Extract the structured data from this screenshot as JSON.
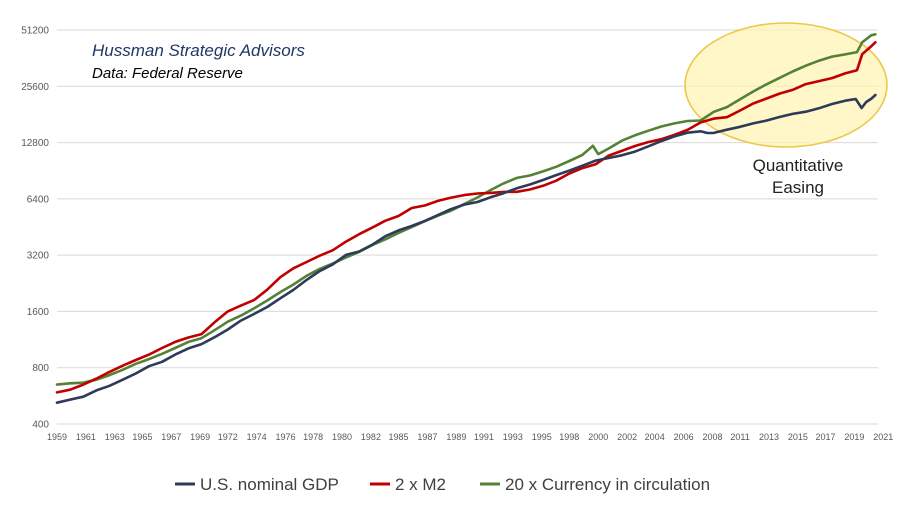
{
  "chart_data": {
    "type": "line",
    "y_scale": "log2",
    "ylim": [
      400,
      51200
    ],
    "y_ticks": [
      "400",
      "800",
      "1600",
      "3200",
      "6400",
      "12800",
      "25600",
      "51200"
    ],
    "y_tick_values": [
      400,
      800,
      1600,
      3200,
      6400,
      12800,
      25600,
      51200
    ],
    "xlim": [
      1959,
      2021.5
    ],
    "x_ticks": [
      "1959",
      "1961",
      "1963",
      "1965",
      "1967",
      "1969",
      "1972",
      "1974",
      "1976",
      "1978",
      "1980",
      "1982",
      "1985",
      "1987",
      "1989",
      "1991",
      "1993",
      "1995",
      "1998",
      "2000",
      "2002",
      "2004",
      "2006",
      "2008",
      "2011",
      "2013",
      "2015",
      "2017",
      "2019",
      "2021"
    ],
    "x_tick_values": [
      1959,
      1961.2,
      1963.4,
      1965.5,
      1967.7,
      1969.9,
      1972,
      1974.2,
      1976.4,
      1978.5,
      1980.7,
      1982.9,
      1985,
      1987.2,
      1989.4,
      1991.5,
      1993.7,
      1995.9,
      1998,
      2000.2,
      2002.4,
      2004.5,
      2006.7,
      2008.9,
      2011,
      2013.2,
      2015.4,
      2017.5,
      2019.7,
      2021.9
    ],
    "grid": true,
    "legend_position": "bottom",
    "annotations": {
      "source_title": "Hussman Strategic Advisors",
      "source_note": "Data: Federal Reserve",
      "callout_line1": "Quantitative",
      "callout_line2": "Easing"
    },
    "series": [
      {
        "name": "U.S. nominal GDP",
        "color": "#2e3a59",
        "x": [
          1959,
          1960,
          1961,
          1962,
          1963,
          1964,
          1965,
          1966,
          1967,
          1968,
          1969,
          1970,
          1971,
          1972,
          1973,
          1974,
          1975,
          1976,
          1977,
          1978,
          1979,
          1980,
          1981,
          1982,
          1983,
          1984,
          1985,
          1986,
          1987,
          1988,
          1989,
          1990,
          1991,
          1992,
          1993,
          1994,
          1995,
          1996,
          1997,
          1998,
          1999,
          2000,
          2001,
          2002,
          2003,
          2004,
          2005,
          2006,
          2007,
          2008,
          2008.5,
          2009,
          2010,
          2011,
          2012,
          2013,
          2014,
          2015,
          2016,
          2017,
          2018,
          2019,
          2019.8,
          2020.25,
          2020.6,
          2021,
          2021.3
        ],
        "values": [
          520,
          540,
          560,
          605,
          640,
          690,
          745,
          815,
          860,
          940,
          1015,
          1070,
          1165,
          1280,
          1430,
          1550,
          1690,
          1880,
          2085,
          2360,
          2630,
          2860,
          3210,
          3345,
          3640,
          4040,
          4340,
          4580,
          4880,
          5240,
          5640,
          5960,
          6160,
          6520,
          6860,
          7290,
          7640,
          8070,
          8580,
          9060,
          9630,
          10250,
          10580,
          10940,
          11460,
          12210,
          13040,
          13810,
          14450,
          14710,
          14400,
          14420,
          15000,
          15540,
          16200,
          16780,
          17530,
          18220,
          18710,
          19520,
          20580,
          21430,
          21900,
          19600,
          21100,
          22000,
          23000
        ]
      },
      {
        "name": "2 x M2",
        "color": "#c00000",
        "x": [
          1959,
          1960,
          1961,
          1962,
          1963,
          1964,
          1965,
          1966,
          1967,
          1968,
          1969,
          1970,
          1971,
          1972,
          1973,
          1974,
          1975,
          1976,
          1977,
          1978,
          1979,
          1980,
          1981,
          1982,
          1983,
          1984,
          1985,
          1986,
          1987,
          1988,
          1989,
          1990,
          1991,
          1992,
          1993,
          1994,
          1995,
          1996,
          1997,
          1998,
          1999,
          2000,
          2001,
          2002,
          2003,
          2004,
          2005,
          2006,
          2007,
          2008,
          2009,
          2010,
          2011,
          2012,
          2013,
          2014,
          2015,
          2016,
          2017,
          2018,
          2019,
          2019.9,
          2020.3,
          2021,
          2021.3
        ],
        "values": [
          590,
          610,
          650,
          700,
          760,
          820,
          880,
          940,
          1020,
          1100,
          1160,
          1210,
          1400,
          1600,
          1720,
          1840,
          2090,
          2440,
          2720,
          2940,
          3180,
          3400,
          3780,
          4140,
          4490,
          4890,
          5180,
          5720,
          5900,
          6240,
          6500,
          6700,
          6840,
          6890,
          6970,
          6980,
          7180,
          7520,
          8000,
          8750,
          9350,
          9800,
          10900,
          11550,
          12270,
          12880,
          13340,
          14080,
          14960,
          16400,
          17200,
          17500,
          19000,
          20700,
          22000,
          23400,
          24500,
          26300,
          27300,
          28300,
          30000,
          31200,
          38000,
          42000,
          44000
        ]
      },
      {
        "name": "20 x Currency in circulation",
        "color": "#548235",
        "x": [
          1959,
          1960,
          1961,
          1962,
          1963,
          1964,
          1965,
          1966,
          1967,
          1968,
          1969,
          1970,
          1971,
          1972,
          1973,
          1974,
          1975,
          1976,
          1977,
          1978,
          1979,
          1980,
          1981,
          1982,
          1983,
          1984,
          1985,
          1986,
          1987,
          1988,
          1989,
          1990,
          1991,
          1992,
          1993,
          1994,
          1995,
          1996,
          1997,
          1998,
          1999,
          1999.8,
          2000.2,
          2001,
          2002,
          2003,
          2004,
          2005,
          2006,
          2007,
          2008,
          2009,
          2010,
          2011,
          2012,
          2013,
          2014,
          2015,
          2016,
          2017,
          2018,
          2019,
          2019.9,
          2020.3,
          2021,
          2021.3
        ],
        "values": [
          650,
          660,
          665,
          690,
          730,
          780,
          840,
          890,
          950,
          1020,
          1100,
          1150,
          1270,
          1410,
          1520,
          1660,
          1830,
          2030,
          2230,
          2480,
          2700,
          2890,
          3110,
          3330,
          3620,
          3890,
          4210,
          4520,
          4860,
          5200,
          5540,
          6000,
          6510,
          7130,
          7740,
          8280,
          8530,
          8970,
          9500,
          10200,
          11000,
          12300,
          11100,
          11900,
          13100,
          14000,
          14800,
          15600,
          16200,
          16700,
          16800,
          18700,
          19800,
          21800,
          24000,
          26200,
          28400,
          30700,
          33000,
          35100,
          36900,
          37900,
          39000,
          44000,
          48000,
          48500
        ]
      }
    ]
  }
}
